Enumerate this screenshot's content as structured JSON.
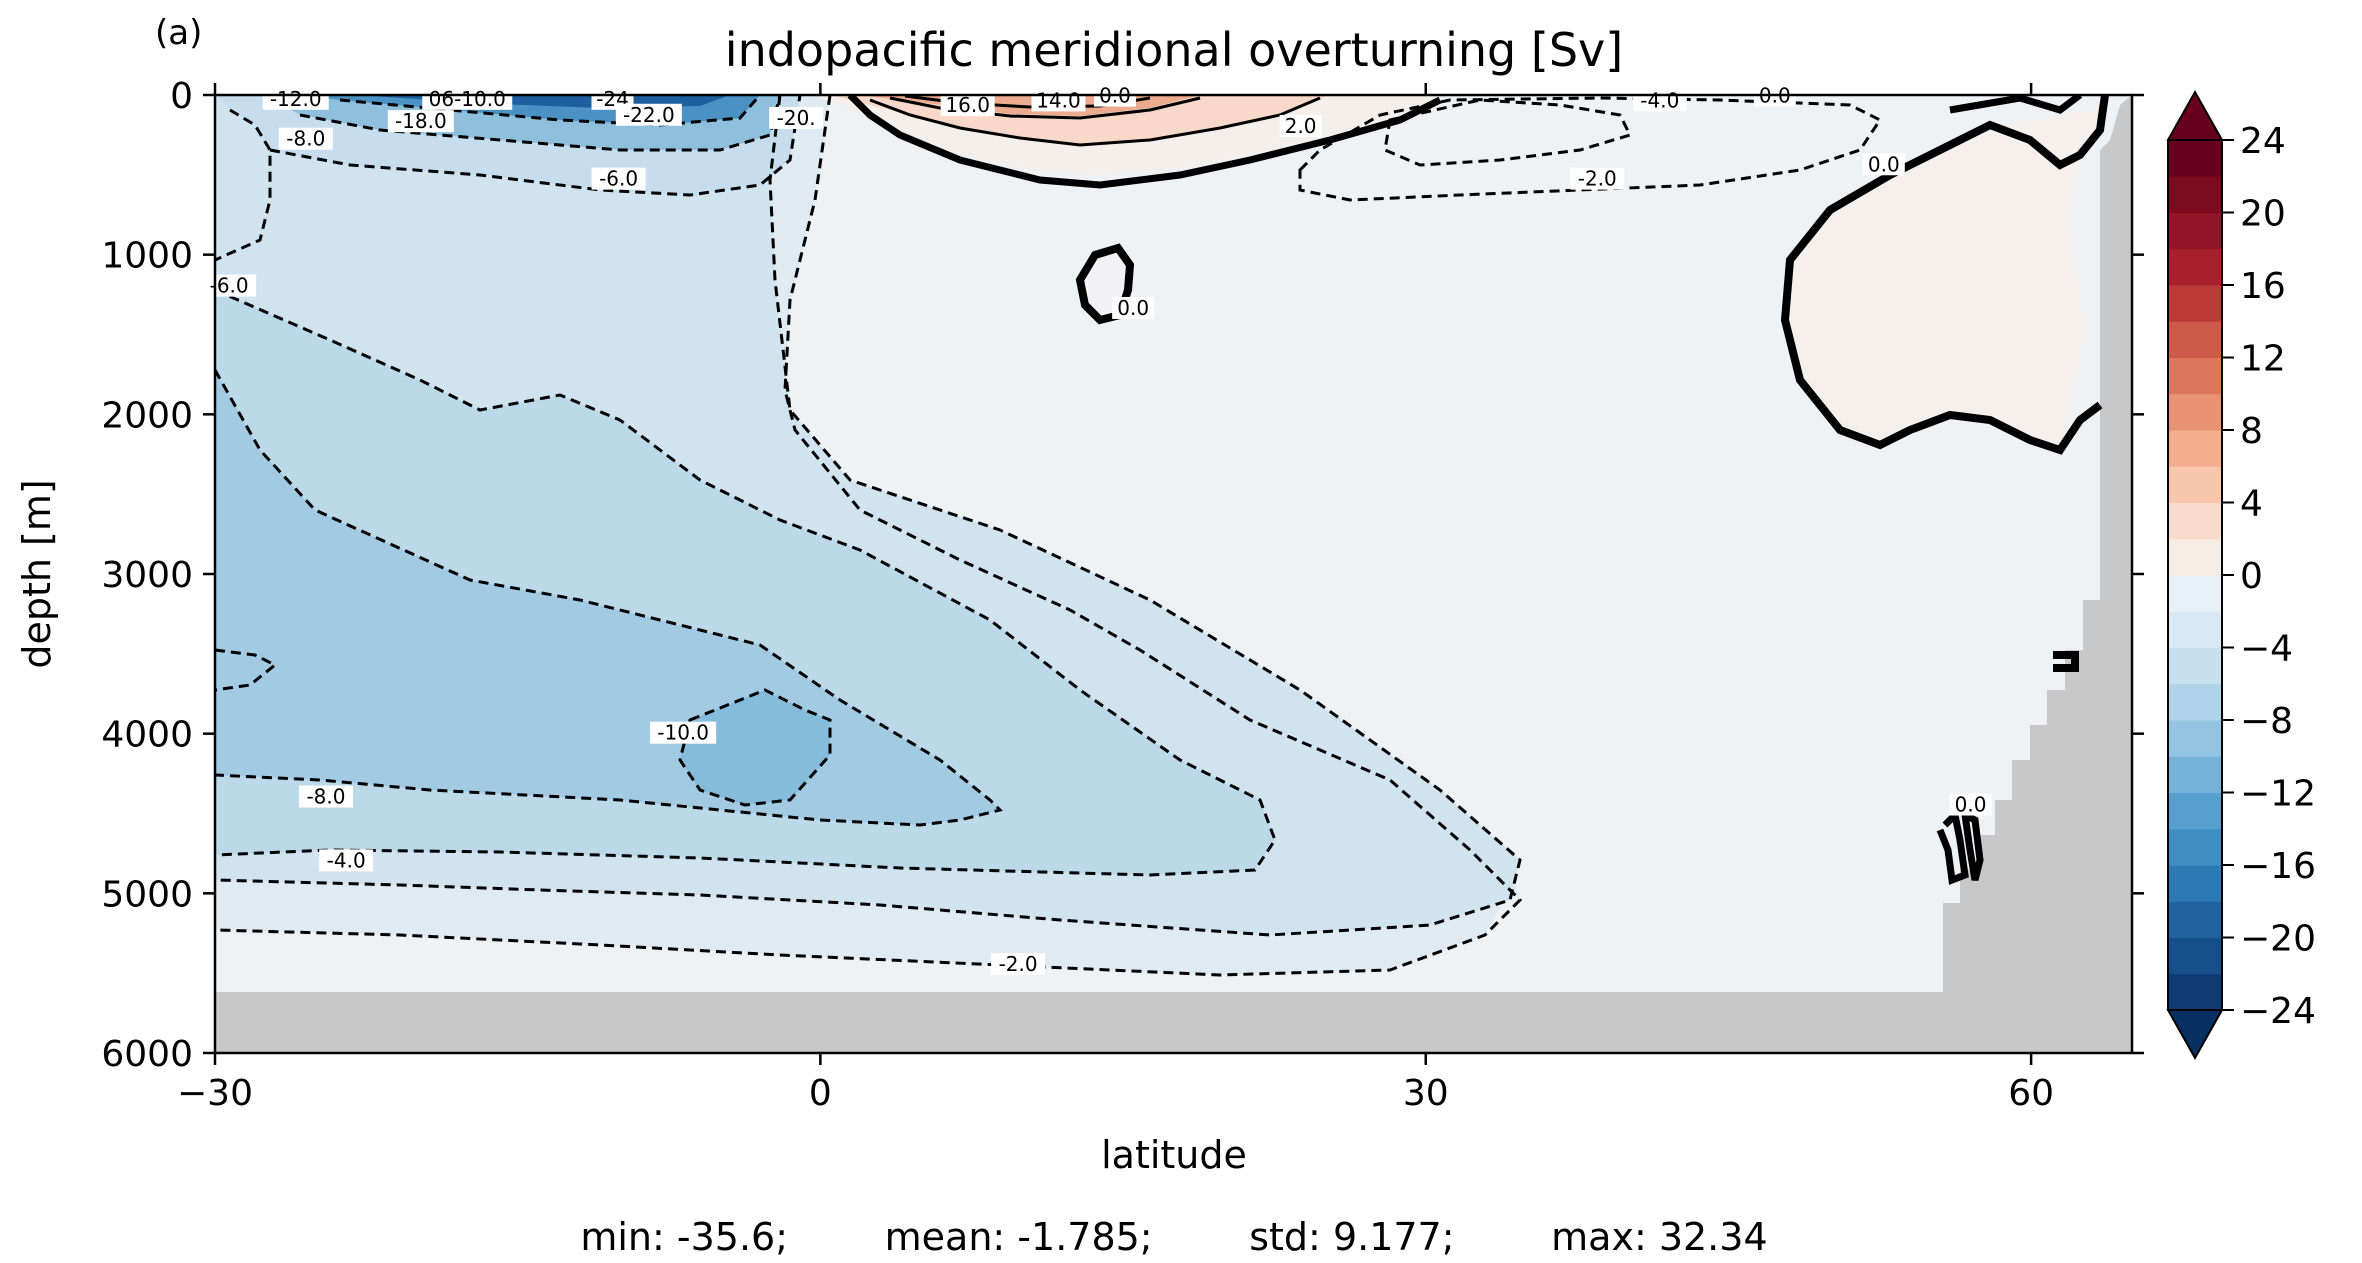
{
  "panel_label": "(a)",
  "stats_text": "min: -35.6;        mean: -1.785;        std: 9.177;        max: 32.34",
  "chart_data": {
    "type": "contour",
    "title": "indopacific meridional overturning [Sv]",
    "xlabel": "latitude",
    "ylabel": "depth [m]",
    "xlim": [
      -30,
      65
    ],
    "ylim": [
      6000,
      0
    ],
    "x_ticks": [
      -30,
      0,
      30,
      60
    ],
    "x_tick_labels": [
      "−30",
      "0",
      "30",
      "60"
    ],
    "y_ticks": [
      0,
      1000,
      2000,
      3000,
      4000,
      5000,
      6000
    ],
    "y_tick_labels": [
      "0",
      "1000",
      "2000",
      "3000",
      "4000",
      "5000",
      "6000"
    ],
    "colorbar": {
      "cmap": "RdBu_r",
      "levels_min": -24,
      "levels_max": 24,
      "level_step": 2,
      "extend": "both",
      "ticks": [
        24,
        20,
        16,
        12,
        8,
        4,
        0,
        -4,
        -8,
        -12,
        -16,
        -20,
        -24
      ],
      "tick_labels": [
        "24",
        "20",
        "16",
        "12",
        "8",
        "4",
        "0",
        "−4",
        "−8",
        "−12",
        "−16",
        "−20",
        "−24"
      ]
    },
    "contour_labels": [
      {
        "text": "-12.0",
        "lat": -26.0,
        "depth": 30
      },
      {
        "text": "06-10.0",
        "lat": -17.5,
        "depth": 30
      },
      {
        "text": "-24",
        "lat": -10.3,
        "depth": 30
      },
      {
        "text": "-18.0",
        "lat": -19.8,
        "depth": 170
      },
      {
        "text": "-22.0",
        "lat": -8.5,
        "depth": 130
      },
      {
        "text": "-8.0",
        "lat": -25.5,
        "depth": 280
      },
      {
        "text": "-6.0",
        "lat": -10.0,
        "depth": 530
      },
      {
        "text": "-20.",
        "lat": -1.2,
        "depth": 150
      },
      {
        "text": "16.0",
        "lat": 7.3,
        "depth": 70
      },
      {
        "text": "14.0",
        "lat": 11.8,
        "depth": 40
      },
      {
        "text": "0.0",
        "lat": 14.6,
        "depth": 10
      },
      {
        "text": "2.0",
        "lat": 23.8,
        "depth": 200
      },
      {
        "text": "-4.0",
        "lat": 41.6,
        "depth": 40
      },
      {
        "text": "-2.0",
        "lat": 38.5,
        "depth": 530
      },
      {
        "text": "0.0",
        "lat": 47.3,
        "depth": 10
      },
      {
        "text": "0.0",
        "lat": 52.7,
        "depth": 440
      },
      {
        "text": "0.0",
        "lat": 15.5,
        "depth": 1340
      },
      {
        "text": "-6.0",
        "lat": -29.3,
        "depth": 1200
      },
      {
        "text": "-10.0",
        "lat": -6.8,
        "depth": 4000
      },
      {
        "text": "-8.0",
        "lat": -24.5,
        "depth": 4400
      },
      {
        "text": "-4.0",
        "lat": -23.5,
        "depth": 4800
      },
      {
        "text": "-2.0",
        "lat": 9.8,
        "depth": 5450
      },
      {
        "text": "0.0",
        "lat": 57.0,
        "depth": 4450
      }
    ]
  }
}
